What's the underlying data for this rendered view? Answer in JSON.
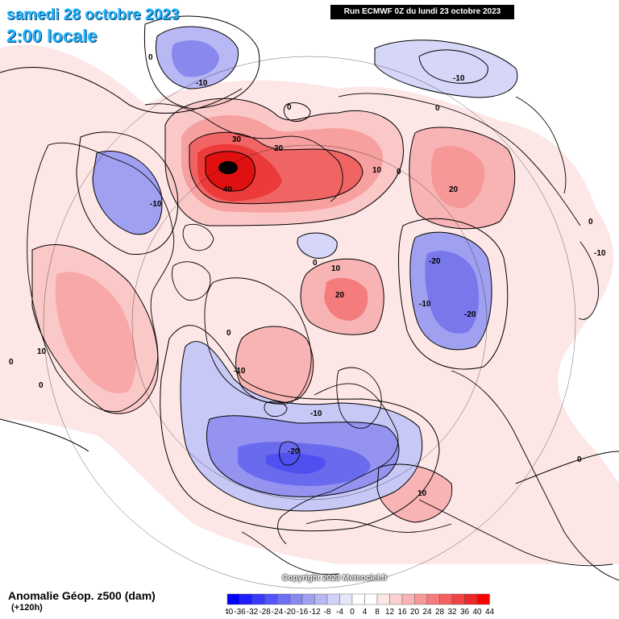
{
  "header": {
    "date": "samedi 28 octobre 2023",
    "time": "2:00 locale",
    "run": "Run ECMWF 0Z du lundi 23 octobre 2023"
  },
  "footer": {
    "title": "Anomalie Géop. z500 (dam)",
    "lead": "(+120h)",
    "copyright": "Copyright 2023 Meteociel.fr"
  },
  "contour_labels": [
    "0",
    "-10",
    "0",
    "-10",
    "30",
    "20",
    "40",
    "10",
    "0",
    "-10",
    "0",
    "20",
    "0",
    "-10",
    "0",
    "-20",
    "10",
    "20",
    "-10",
    "-20",
    "0",
    "10",
    "0",
    "0",
    "-10",
    "-10",
    "-20",
    "10",
    "0"
  ],
  "legend": {
    "ticks": [
      "-40",
      "-36",
      "-32",
      "-28",
      "-24",
      "-20",
      "-16",
      "-12",
      "-8",
      "-4",
      "0",
      "4",
      "8",
      "12",
      "16",
      "20",
      "24",
      "28",
      "32",
      "36",
      "40",
      "44"
    ],
    "colors": [
      "#0000ff",
      "#1e1eff",
      "#3a3aff",
      "#5555ff",
      "#6f6ff2",
      "#8888ee",
      "#a0a0f0",
      "#b8b8f4",
      "#d0d0f8",
      "#e6e6fb",
      "#ffffff",
      "#ffffff",
      "#fde6e6",
      "#fbd0d0",
      "#f8b4b4",
      "#f69898",
      "#f47c7c",
      "#f26060",
      "#f04444",
      "#ee2828",
      "#ff0000"
    ]
  },
  "colors": {
    "positive_strong": "#ff1a1a",
    "positive_light": "#fbd0d0",
    "negative_strong": "#3a3aff",
    "negative_light": "#d6d6f8",
    "title": "#1fb5ff"
  }
}
